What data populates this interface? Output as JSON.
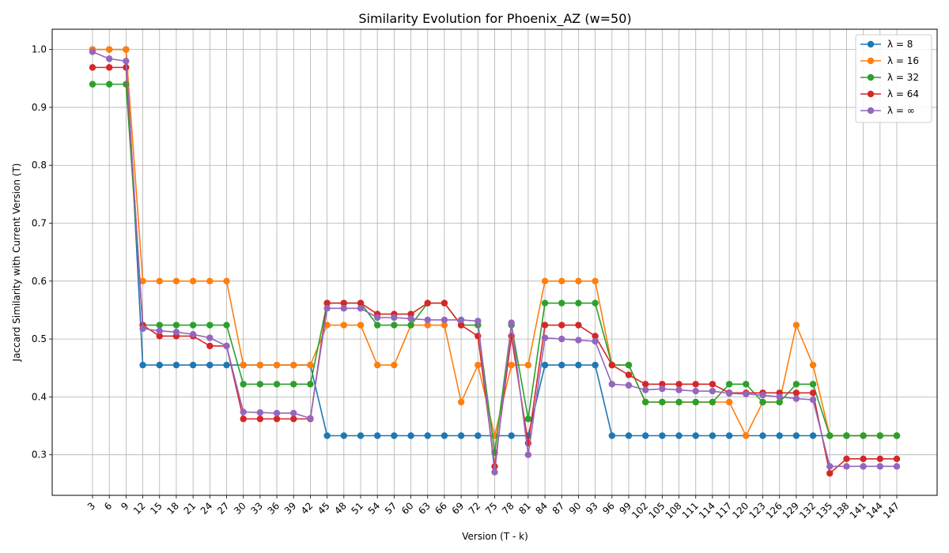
{
  "chart_data": {
    "type": "line",
    "title": "Similarity Evolution for Phoenix_AZ (w=50)",
    "xlabel": "Version (T - k)",
    "ylabel": "Jaccard Similarity with Current Version (T)",
    "ylim": [
      0.23,
      1.035
    ],
    "yticks": [
      0.3,
      0.4,
      0.5,
      0.6,
      0.7,
      0.8,
      0.9,
      1.0
    ],
    "ytick_labels": [
      "0.3",
      "0.4",
      "0.5",
      "0.6",
      "0.7",
      "0.8",
      "0.9",
      "1.0"
    ],
    "grid": true,
    "legend_position": "top-right",
    "x": [
      3,
      6,
      9,
      12,
      15,
      18,
      21,
      24,
      27,
      30,
      33,
      36,
      39,
      42,
      45,
      48,
      51,
      54,
      57,
      60,
      63,
      66,
      69,
      72,
      75,
      78,
      81,
      84,
      87,
      90,
      93,
      96,
      99,
      102,
      105,
      108,
      111,
      114,
      117,
      120,
      123,
      126,
      129,
      132,
      135,
      138,
      141,
      144,
      147
    ],
    "x_labels": [
      "3",
      "6",
      "9",
      "12",
      "15",
      "18",
      "21",
      "24",
      "27",
      "30",
      "33",
      "36",
      "39",
      "42",
      "45",
      "48",
      "51",
      "54",
      "57",
      "60",
      "63",
      "66",
      "69",
      "72",
      "75",
      "78",
      "81",
      "84",
      "87",
      "90",
      "93",
      "96",
      "99",
      "102",
      "105",
      "108",
      "111",
      "114",
      "117",
      "120",
      "123",
      "126",
      "129",
      "132",
      "135",
      "138",
      "141",
      "144",
      "147"
    ],
    "series": [
      {
        "name": "λ = 8",
        "color": "#1f77b4",
        "values": [
          1.0,
          1.0,
          1.0,
          0.455,
          0.455,
          0.455,
          0.455,
          0.455,
          0.455,
          0.455,
          0.455,
          0.455,
          0.455,
          0.455,
          0.333,
          0.333,
          0.333,
          0.333,
          0.333,
          0.333,
          0.333,
          0.333,
          0.333,
          0.333,
          0.333,
          0.333,
          0.333,
          0.455,
          0.455,
          0.455,
          0.455,
          0.333,
          0.333,
          0.333,
          0.333,
          0.333,
          0.333,
          0.333,
          0.333,
          0.333,
          0.333,
          0.333,
          0.333,
          0.333,
          0.333,
          0.333,
          0.333,
          0.333,
          0.333
        ]
      },
      {
        "name": "λ = 16",
        "color": "#ff7f0e",
        "values": [
          1.0,
          1.0,
          1.0,
          0.6,
          0.6,
          0.6,
          0.6,
          0.6,
          0.6,
          0.455,
          0.455,
          0.455,
          0.455,
          0.455,
          0.524,
          0.524,
          0.524,
          0.455,
          0.455,
          0.524,
          0.524,
          0.524,
          0.391,
          0.455,
          0.333,
          0.455,
          0.455,
          0.6,
          0.6,
          0.6,
          0.6,
          0.455,
          0.455,
          0.391,
          0.391,
          0.391,
          0.391,
          0.391,
          0.391,
          0.333,
          0.391,
          0.391,
          0.524,
          0.455,
          0.333,
          0.333,
          0.333,
          0.333,
          0.333
        ]
      },
      {
        "name": "λ = 32",
        "color": "#2ca02c",
        "values": [
          0.94,
          0.94,
          0.94,
          0.524,
          0.524,
          0.524,
          0.524,
          0.524,
          0.524,
          0.422,
          0.422,
          0.422,
          0.422,
          0.422,
          0.562,
          0.562,
          0.562,
          0.524,
          0.524,
          0.524,
          0.562,
          0.562,
          0.524,
          0.524,
          0.304,
          0.524,
          0.362,
          0.562,
          0.562,
          0.562,
          0.562,
          0.455,
          0.455,
          0.391,
          0.391,
          0.391,
          0.391,
          0.391,
          0.422,
          0.422,
          0.391,
          0.391,
          0.422,
          0.422,
          0.333,
          0.333,
          0.333,
          0.333,
          0.333
        ]
      },
      {
        "name": "λ = 64",
        "color": "#d62728",
        "values": [
          0.969,
          0.969,
          0.969,
          0.524,
          0.505,
          0.505,
          0.505,
          0.488,
          0.488,
          0.362,
          0.362,
          0.362,
          0.362,
          0.362,
          0.562,
          0.562,
          0.562,
          0.543,
          0.543,
          0.543,
          0.562,
          0.562,
          0.524,
          0.505,
          0.28,
          0.505,
          0.32,
          0.524,
          0.524,
          0.524,
          0.505,
          0.455,
          0.438,
          0.422,
          0.422,
          0.422,
          0.422,
          0.422,
          0.407,
          0.407,
          0.407,
          0.407,
          0.407,
          0.407,
          0.268,
          0.293,
          0.293,
          0.293,
          0.293
        ]
      },
      {
        "name": "λ = ∞",
        "color": "#9467bd",
        "values": [
          0.996,
          0.984,
          0.98,
          0.518,
          0.514,
          0.512,
          0.508,
          0.502,
          0.488,
          0.374,
          0.373,
          0.372,
          0.372,
          0.363,
          0.553,
          0.553,
          0.553,
          0.537,
          0.537,
          0.535,
          0.533,
          0.533,
          0.533,
          0.531,
          0.27,
          0.528,
          0.3,
          0.502,
          0.5,
          0.498,
          0.496,
          0.422,
          0.42,
          0.412,
          0.414,
          0.412,
          0.41,
          0.41,
          0.406,
          0.405,
          0.403,
          0.4,
          0.397,
          0.395,
          0.28,
          0.28,
          0.28,
          0.28,
          0.28
        ]
      }
    ]
  }
}
